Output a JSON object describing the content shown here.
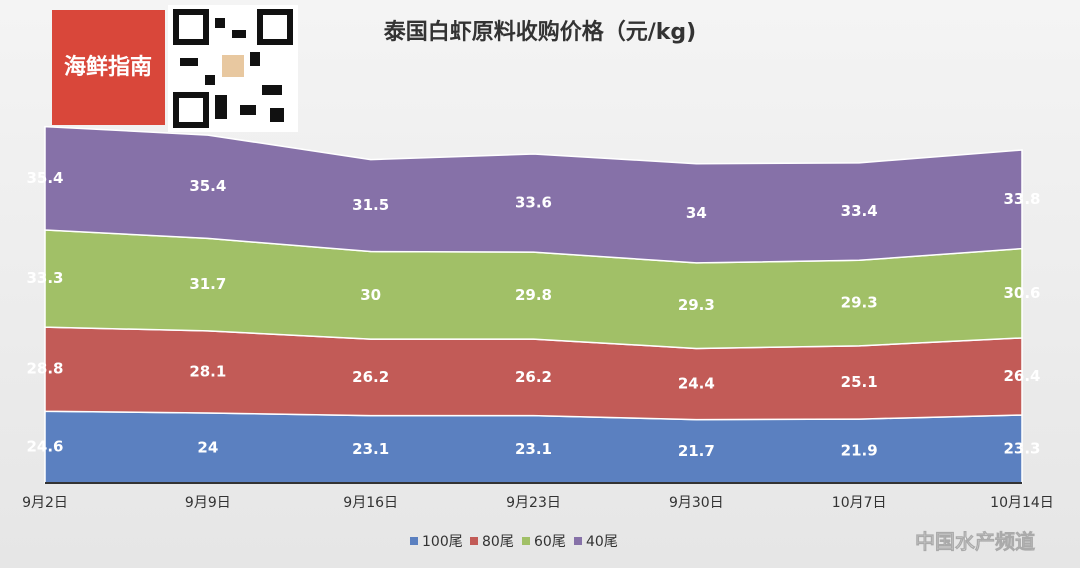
{
  "chart_data": {
    "type": "stacked-area",
    "title": "泰国白虾原料收购价格（元/kg)",
    "categories": [
      "9月2日",
      "9月9日",
      "9月16日",
      "9月23日",
      "9月30日",
      "10月7日",
      "10月14日"
    ],
    "series": [
      {
        "name": "100尾",
        "color": "#5b80c0",
        "values": [
          24.6,
          24.0,
          23.1,
          23.1,
          21.7,
          21.9,
          23.3
        ]
      },
      {
        "name": "80尾",
        "color": "#c25b57",
        "values": [
          28.8,
          28.1,
          26.2,
          26.2,
          24.4,
          25.1,
          26.4
        ]
      },
      {
        "name": "60尾",
        "color": "#a1c067",
        "values": [
          33.3,
          31.7,
          30.0,
          29.8,
          29.3,
          29.3,
          30.6
        ]
      },
      {
        "name": "40尾",
        "color": "#8671a8",
        "values": [
          35.4,
          35.4,
          31.5,
          33.6,
          34.0,
          33.4,
          33.8
        ]
      }
    ],
    "ylim": [
      0,
      160
    ],
    "logo": "海鲜指南",
    "watermark": "中国水产频道"
  }
}
